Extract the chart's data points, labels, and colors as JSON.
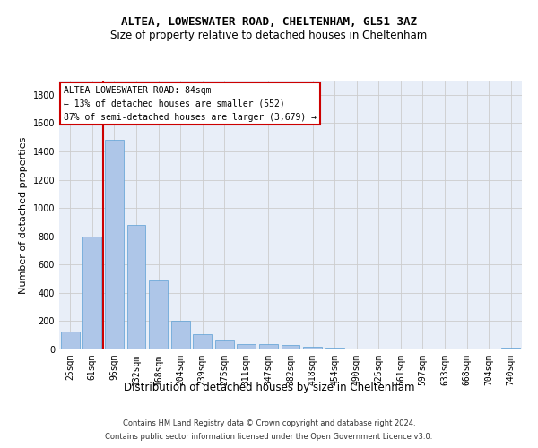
{
  "title": "ALTEA, LOWESWATER ROAD, CHELTENHAM, GL51 3AZ",
  "subtitle": "Size of property relative to detached houses in Cheltenham",
  "xlabel": "Distribution of detached houses by size in Cheltenham",
  "ylabel": "Number of detached properties",
  "footer_line1": "Contains HM Land Registry data © Crown copyright and database right 2024.",
  "footer_line2": "Contains public sector information licensed under the Open Government Licence v3.0.",
  "categories": [
    "25sqm",
    "61sqm",
    "96sqm",
    "132sqm",
    "168sqm",
    "204sqm",
    "239sqm",
    "275sqm",
    "311sqm",
    "347sqm",
    "382sqm",
    "418sqm",
    "454sqm",
    "490sqm",
    "525sqm",
    "561sqm",
    "597sqm",
    "633sqm",
    "668sqm",
    "704sqm",
    "740sqm"
  ],
  "values": [
    125,
    800,
    1480,
    880,
    490,
    205,
    105,
    65,
    40,
    35,
    30,
    20,
    15,
    5,
    5,
    5,
    5,
    5,
    5,
    5,
    15
  ],
  "bar_color": "#aec6e8",
  "bar_edge_color": "#5a9fd4",
  "grid_color": "#cccccc",
  "vline_x": 2,
  "vline_color": "#cc0000",
  "annotation_text": "ALTEA LOWESWATER ROAD: 84sqm\n← 13% of detached houses are smaller (552)\n87% of semi-detached houses are larger (3,679) →",
  "annotation_box_color": "#cc0000",
  "ylim": [
    0,
    1900
  ],
  "yticks": [
    0,
    200,
    400,
    600,
    800,
    1000,
    1200,
    1400,
    1600,
    1800
  ],
  "background_color": "#e8eef8",
  "title_fontsize": 9,
  "subtitle_fontsize": 8.5,
  "ylabel_fontsize": 8,
  "xlabel_fontsize": 8.5,
  "tick_fontsize": 7,
  "annotation_fontsize": 7,
  "footer_fontsize": 6
}
